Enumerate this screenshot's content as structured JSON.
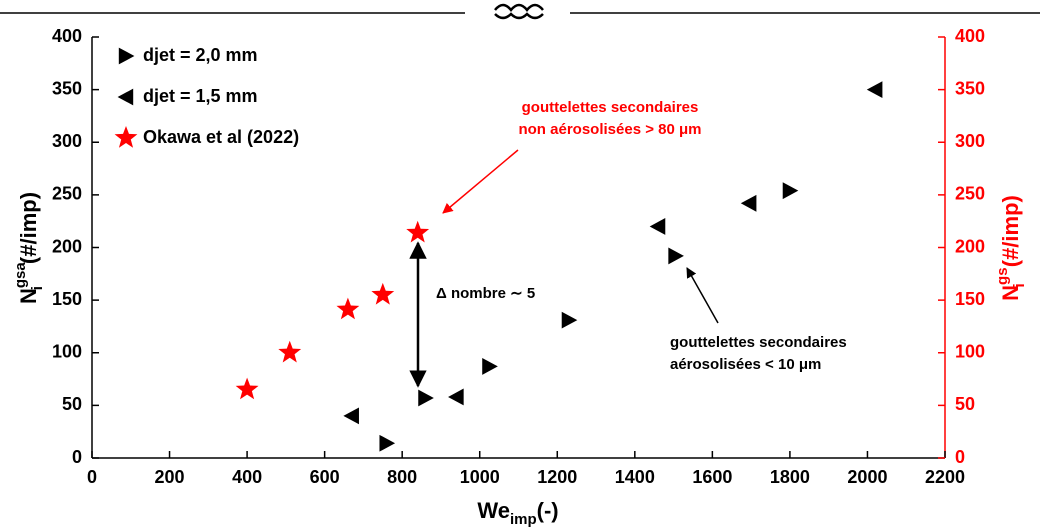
{
  "chart_data": {
    "type": "scatter",
    "x_label": {
      "base": "We",
      "sub": "imp",
      "unit": "(-)"
    },
    "y_label": {
      "base": "N",
      "sup": "gsa",
      "sub": "i",
      "unit": "(#/imp)"
    },
    "y2_label": {
      "base": "N",
      "sup": "gs",
      "sub": "i",
      "unit": "(#/imp)",
      "color": "#ff0000"
    },
    "xlim": [
      0,
      2200
    ],
    "xticks": [
      0,
      200,
      400,
      600,
      800,
      1000,
      1200,
      1400,
      1600,
      1800,
      2000,
      2200
    ],
    "ylim": [
      0,
      400
    ],
    "yticks": [
      0,
      50,
      100,
      150,
      200,
      250,
      300,
      350,
      400
    ],
    "y2lim": [
      0,
      400
    ],
    "y2ticks": [
      0,
      50,
      100,
      150,
      200,
      250,
      300,
      350,
      400
    ],
    "grid": false,
    "legend": "upper left",
    "series": [
      {
        "name": "djet = 2,0 mm",
        "marker": "triangle-right",
        "color": "#000000",
        "x": [
          760,
          860,
          1025,
          1230,
          1505,
          1800
        ],
        "values": [
          14,
          57,
          87,
          131,
          192,
          254
        ]
      },
      {
        "name": "djet = 1,5 mm",
        "marker": "triangle-left",
        "color": "#000000",
        "x": [
          670,
          940,
          1460,
          1695,
          2020
        ],
        "values": [
          40,
          58,
          220,
          242,
          350
        ]
      },
      {
        "name": "Okawa et al (2022)",
        "marker": "star",
        "color": "#ff0000",
        "axis": "y2",
        "x": [
          400,
          510,
          660,
          750,
          840
        ],
        "values": [
          65,
          100,
          141,
          155,
          214
        ]
      }
    ],
    "annotations": [
      {
        "lines": [
          "gouttelettes secondaires",
          "non aérosolisées > 80 μm"
        ],
        "color": "#ff0000"
      },
      {
        "lines": [
          "gouttelettes secondaires",
          "aérosolisées < 10 μm"
        ],
        "color": "#000000"
      },
      {
        "lines": [
          "Δ nombre ∼ 5"
        ],
        "color": "#000000"
      }
    ]
  }
}
